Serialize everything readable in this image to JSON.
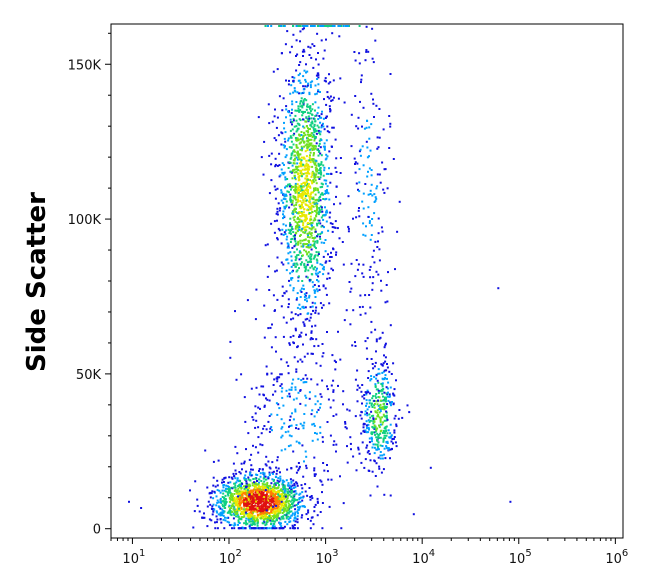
{
  "chart_data": {
    "type": "scatter",
    "style": "flow-cytometry density dot plot",
    "title": "",
    "xlabel": "",
    "ylabel": "Side Scatter",
    "x_scale": "log",
    "xlim": [
      6,
      1200000
    ],
    "ylim": [
      -3000,
      163000
    ],
    "x_ticks": [
      {
        "base": "10",
        "exp": "1",
        "value": 10
      },
      {
        "base": "10",
        "exp": "2",
        "value": 100
      },
      {
        "base": "10",
        "exp": "3",
        "value": 1000
      },
      {
        "base": "10",
        "exp": "4",
        "value": 10000
      },
      {
        "base": "10",
        "exp": "5",
        "value": 100000
      },
      {
        "base": "10",
        "exp": "6",
        "value": 1000000
      }
    ],
    "y_ticks": [
      {
        "label": "0",
        "value": 0
      },
      {
        "label": "50K",
        "value": 50000
      },
      {
        "label": "100K",
        "value": 100000
      },
      {
        "label": "150K",
        "value": 150000
      }
    ],
    "grid": false,
    "legend": "none",
    "density_colors": [
      "#1010e0",
      "#00a0ff",
      "#10d080",
      "#70e020",
      "#e8e800",
      "#ff8000",
      "#e01010"
    ],
    "populations": [
      {
        "x_center": 200,
        "x_spread_decades": 0.23,
        "y_center": 9000,
        "y_spread": 4500,
        "count": 1600,
        "peak_density": 1.0
      },
      {
        "x_center": 600,
        "x_spread_decades": 0.14,
        "y_center": 110000,
        "y_spread": 22000,
        "count": 1500,
        "peak_density": 0.6
      },
      {
        "x_center": 3500,
        "x_spread_decades": 0.09,
        "y_center": 37000,
        "y_spread": 9000,
        "count": 380,
        "peak_density": 0.45
      },
      {
        "x_center": 2700,
        "x_spread_decades": 0.12,
        "y_center": 110000,
        "y_spread": 30000,
        "count": 200,
        "peak_density": 0.15
      },
      {
        "x_center": 500,
        "x_spread_decades": 0.35,
        "y_center": 35000,
        "y_spread": 18000,
        "count": 300,
        "peak_density": 0.15
      }
    ],
    "outlier_points": [
      {
        "x": 12,
        "y": 7000
      },
      {
        "x": 9,
        "y": 9000
      },
      {
        "x": 60000,
        "y": 78000
      },
      {
        "x": 80000,
        "y": 9000
      },
      {
        "x": 12000,
        "y": 20000
      },
      {
        "x": 8000,
        "y": 5000
      }
    ]
  }
}
